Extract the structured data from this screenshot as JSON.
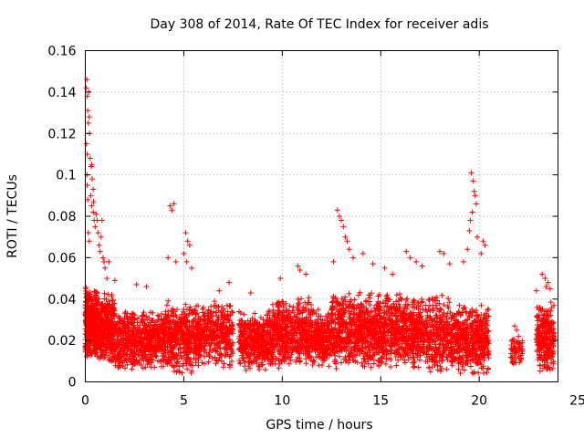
{
  "chart_data": {
    "type": "scatter",
    "title": "Day 308 of 2014, Rate Of TEC Index for receiver adis",
    "xlabel": "GPS time / hours",
    "ylabel": "ROTI / TECUs",
    "xlim": [
      0,
      24
    ],
    "ylim": [
      0,
      0.16
    ],
    "xticks": [
      0,
      5,
      10,
      15,
      20,
      25
    ],
    "yticks": [
      0,
      0.02,
      0.04,
      0.06,
      0.08,
      0.1,
      0.12,
      0.14,
      0.16
    ],
    "xtick_labels": [
      "0",
      "5",
      "10",
      "15",
      "20",
      "25"
    ],
    "ytick_labels": [
      "0",
      "0.02",
      "0.04",
      "0.06",
      "0.08",
      "0.1",
      "0.12",
      "0.14",
      "0.16"
    ],
    "grid": true,
    "marker": "+",
    "series": [
      {
        "name": "ROTI",
        "color": "#ff0000",
        "points": [
          [
            0.05,
            0.142
          ],
          [
            0.08,
            0.146
          ],
          [
            0.1,
            0.138
          ],
          [
            0.12,
            0.131
          ],
          [
            0.15,
            0.125
          ],
          [
            0.18,
            0.14
          ],
          [
            0.2,
            0.128
          ],
          [
            0.22,
            0.12
          ],
          [
            0.06,
            0.115
          ],
          [
            0.1,
            0.11
          ],
          [
            0.25,
            0.108
          ],
          [
            0.3,
            0.104
          ],
          [
            0.35,
            0.098
          ],
          [
            0.28,
            0.09
          ],
          [
            0.32,
            0.085
          ],
          [
            0.4,
            0.082
          ],
          [
            0.45,
            0.078
          ],
          [
            0.5,
            0.075
          ],
          [
            0.15,
            0.072
          ],
          [
            0.2,
            0.068
          ],
          [
            0.55,
            0.081
          ],
          [
            0.6,
            0.078
          ],
          [
            0.65,
            0.072
          ],
          [
            0.7,
            0.066
          ],
          [
            0.75,
            0.063
          ],
          [
            0.8,
            0.07
          ],
          [
            0.85,
            0.078
          ],
          [
            0.9,
            0.06
          ],
          [
            0.95,
            0.058
          ],
          [
            1.0,
            0.055
          ],
          [
            1.1,
            0.05
          ],
          [
            1.2,
            0.058
          ],
          [
            0.1,
            0.095
          ],
          [
            0.12,
            0.088
          ],
          [
            0.08,
            0.1
          ],
          [
            0.33,
            0.105
          ],
          [
            0.4,
            0.093
          ],
          [
            0.42,
            0.087
          ],
          [
            4.3,
            0.085
          ],
          [
            4.4,
            0.083
          ],
          [
            4.5,
            0.086
          ],
          [
            4.2,
            0.06
          ],
          [
            4.6,
            0.058
          ],
          [
            5.1,
            0.072
          ],
          [
            5.2,
            0.068
          ],
          [
            5.3,
            0.066
          ],
          [
            5.0,
            0.062
          ],
          [
            5.15,
            0.058
          ],
          [
            5.4,
            0.055
          ],
          [
            12.8,
            0.083
          ],
          [
            12.9,
            0.08
          ],
          [
            13.0,
            0.078
          ],
          [
            13.2,
            0.07
          ],
          [
            13.3,
            0.068
          ],
          [
            13.4,
            0.064
          ],
          [
            13.1,
            0.075
          ],
          [
            12.6,
            0.058
          ],
          [
            13.6,
            0.06
          ],
          [
            14.1,
            0.062
          ],
          [
            14.6,
            0.057
          ],
          [
            16.3,
            0.063
          ],
          [
            16.5,
            0.06
          ],
          [
            16.8,
            0.058
          ],
          [
            17.1,
            0.056
          ],
          [
            18.0,
            0.063
          ],
          [
            18.2,
            0.062
          ],
          [
            18.5,
            0.057
          ],
          [
            19.2,
            0.058
          ],
          [
            19.4,
            0.064
          ],
          [
            19.6,
            0.101
          ],
          [
            19.7,
            0.097
          ],
          [
            19.75,
            0.092
          ],
          [
            19.8,
            0.09
          ],
          [
            19.85,
            0.086
          ],
          [
            19.65,
            0.082
          ],
          [
            19.55,
            0.078
          ],
          [
            19.5,
            0.073
          ],
          [
            19.9,
            0.07
          ],
          [
            20.2,
            0.068
          ],
          [
            20.3,
            0.066
          ],
          [
            20.1,
            0.062
          ],
          [
            23.2,
            0.052
          ],
          [
            23.35,
            0.05
          ],
          [
            23.5,
            0.048
          ],
          [
            23.6,
            0.045
          ],
          [
            23.4,
            0.046
          ],
          [
            22.9,
            0.044
          ],
          [
            21.8,
            0.027
          ],
          [
            21.9,
            0.025
          ],
          [
            22.0,
            0.022
          ],
          [
            10.8,
            0.056
          ],
          [
            10.9,
            0.054
          ],
          [
            11.2,
            0.052
          ],
          [
            9.9,
            0.05
          ],
          [
            7.3,
            0.048
          ],
          [
            6.8,
            0.044
          ],
          [
            8.4,
            0.043
          ],
          [
            15.2,
            0.055
          ],
          [
            15.6,
            0.052
          ],
          [
            1.5,
            0.049
          ],
          [
            2.6,
            0.047
          ],
          [
            3.1,
            0.046
          ]
        ],
        "bands": [
          {
            "x": [
              0.0,
              0.6
            ],
            "y": [
              0.01,
              0.047
            ],
            "n": 420
          },
          {
            "x": [
              0.6,
              1.5
            ],
            "y": [
              0.008,
              0.043
            ],
            "n": 380
          },
          {
            "x": [
              1.5,
              4.0
            ],
            "y": [
              0.005,
              0.035
            ],
            "n": 620
          },
          {
            "x": [
              4.0,
              5.5
            ],
            "y": [
              0.003,
              0.04
            ],
            "n": 380
          },
          {
            "x": [
              5.5,
              7.5
            ],
            "y": [
              0.006,
              0.04
            ],
            "n": 460
          },
          {
            "x": [
              7.8,
              9.5
            ],
            "y": [
              0.005,
              0.035
            ],
            "n": 430
          },
          {
            "x": [
              9.5,
              11.5
            ],
            "y": [
              0.006,
              0.042
            ],
            "n": 520
          },
          {
            "x": [
              11.5,
              12.5
            ],
            "y": [
              0.007,
              0.036
            ],
            "n": 260
          },
          {
            "x": [
              12.5,
              14.5
            ],
            "y": [
              0.006,
              0.044
            ],
            "n": 560
          },
          {
            "x": [
              14.5,
              16.2
            ],
            "y": [
              0.005,
              0.045
            ],
            "n": 460
          },
          {
            "x": [
              16.2,
              18.5
            ],
            "y": [
              0.004,
              0.042
            ],
            "n": 560
          },
          {
            "x": [
              18.5,
              20.5
            ],
            "y": [
              0.003,
              0.038
            ],
            "n": 520
          },
          {
            "x": [
              21.6,
              22.2
            ],
            "y": [
              0.006,
              0.022
            ],
            "n": 60
          },
          {
            "x": [
              22.9,
              23.8
            ],
            "y": [
              0.004,
              0.04
            ],
            "n": 280
          }
        ]
      }
    ]
  }
}
